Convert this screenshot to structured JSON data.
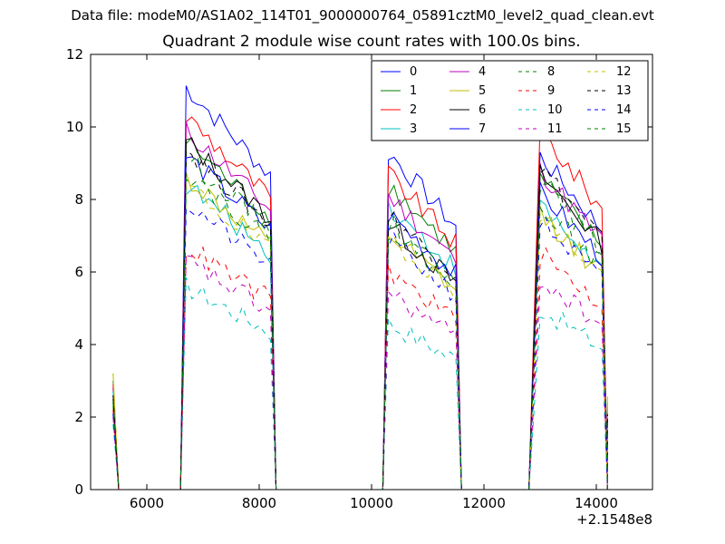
{
  "figure": {
    "suptitle": "Data file: modeM0/AS1A02_114T01_9000000764_05891cztM0_level2_quad_clean.evt",
    "title": "Quadrant 2 module wise count rates with 100.0s bins."
  },
  "chart_data": {
    "type": "line",
    "title": "Quadrant 2 module wise count rates with 100.0s bins.",
    "xlabel": "",
    "ylabel": "",
    "xlim": [
      5000,
      15000
    ],
    "ylim": [
      0,
      12
    ],
    "x_offset_label": "+2.1548e8",
    "xticks": [
      6000,
      8000,
      10000,
      12000,
      14000
    ],
    "xtick_labels": [
      "6000",
      "8000",
      "10000",
      "12000",
      "14000"
    ],
    "yticks": [
      0,
      2,
      4,
      6,
      8,
      10,
      12
    ],
    "ytick_labels": [
      "0",
      "2",
      "4",
      "6",
      "8",
      "10",
      "12"
    ],
    "legend_position": "top-right",
    "legend_columns": 4,
    "segments": [
      [
        6700,
        8200
      ],
      [
        10300,
        11500
      ],
      [
        13000,
        14100
      ]
    ],
    "x_points": [
      5400,
      5500,
      6600,
      6700,
      8200,
      8300,
      8400,
      10200,
      10300,
      11500,
      11600,
      11700,
      12800,
      12900,
      14100,
      14200
    ],
    "series": [
      {
        "name": "0",
        "color": "#0000ff",
        "dash": "solid",
        "level": [
          11.1,
          9.3,
          9.2
        ],
        "start": 2.8
      },
      {
        "name": "1",
        "color": "#008000",
        "dash": "solid",
        "level": [
          9.6,
          8.4,
          8.6
        ],
        "start": 3.0
      },
      {
        "name": "2",
        "color": "#ff0000",
        "dash": "solid",
        "level": [
          10.3,
          8.7,
          9.9
        ],
        "start": 2.9
      },
      {
        "name": "3",
        "color": "#00bfbf",
        "dash": "solid",
        "level": [
          8.4,
          7.8,
          7.8
        ],
        "start": 2.7
      },
      {
        "name": "4",
        "color": "#bf00bf",
        "dash": "solid",
        "level": [
          9.9,
          8.1,
          8.8
        ],
        "start": 2.6
      },
      {
        "name": "5",
        "color": "#bfbf00",
        "dash": "solid",
        "level": [
          8.6,
          7.0,
          7.6
        ],
        "start": 3.2
      },
      {
        "name": "6",
        "color": "#000000",
        "dash": "solid",
        "level": [
          9.6,
          7.3,
          8.7
        ],
        "start": 2.5
      },
      {
        "name": "7",
        "color": "#0000ff",
        "dash": "solid",
        "level": [
          9.2,
          7.6,
          8.2
        ],
        "start": 2.4
      },
      {
        "name": "8",
        "color": "#008000",
        "dash": "dashed",
        "level": [
          9.2,
          7.4,
          8.5
        ],
        "start": 2.3
      },
      {
        "name": "9",
        "color": "#ff0000",
        "dash": "dashed",
        "level": [
          6.7,
          6.0,
          6.5
        ],
        "start": 2.2
      },
      {
        "name": "10",
        "color": "#00bfbf",
        "dash": "dashed",
        "level": [
          5.6,
          4.6,
          5.0
        ],
        "start": 1.8
      },
      {
        "name": "11",
        "color": "#bf00bf",
        "dash": "dashed",
        "level": [
          6.3,
          5.4,
          5.8
        ],
        "start": 2.0
      },
      {
        "name": "12",
        "color": "#bfbf00",
        "dash": "dashed",
        "level": [
          8.4,
          7.0,
          7.6
        ],
        "start": 3.2
      },
      {
        "name": "13",
        "color": "#000000",
        "dash": "dashed",
        "level": [
          9.4,
          7.6,
          8.9
        ],
        "start": 2.6
      },
      {
        "name": "14",
        "color": "#0000ff",
        "dash": "dashed",
        "level": [
          7.9,
          6.9,
          7.4
        ],
        "start": 2.1
      },
      {
        "name": "15",
        "color": "#008000",
        "dash": "dashed",
        "level": [
          8.8,
          7.2,
          7.9
        ],
        "start": 2.4
      }
    ]
  }
}
